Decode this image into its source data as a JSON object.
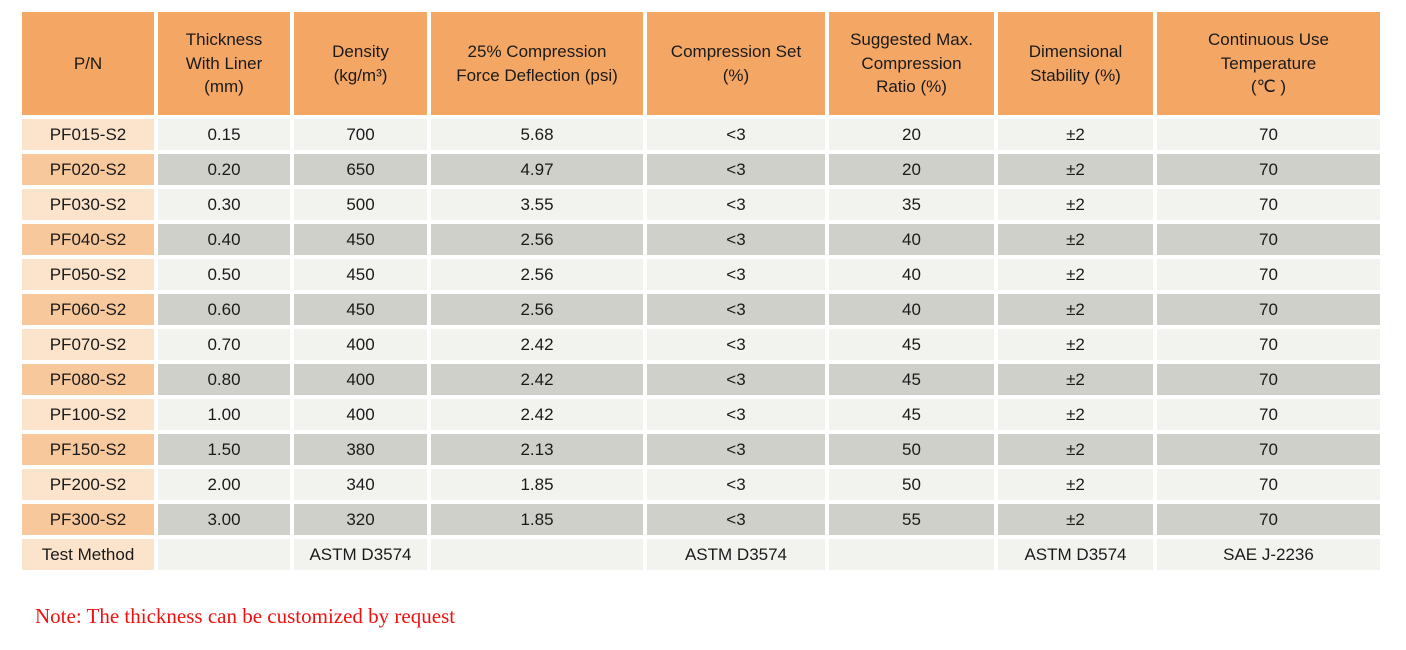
{
  "colors": {
    "header_bg": "#F4A765",
    "pn_odd_bg": "#FCE3CB",
    "pn_even_bg": "#F8C89D",
    "cell_odd_bg": "#F2F2EE",
    "cell_even_bg": "#D0D0CA",
    "text": "#1A1A1A",
    "note": "#F01010"
  },
  "table": {
    "columns": [
      "P/N",
      "Thickness\nWith Liner\n(mm)",
      "Density\n(kg/m³)",
      "25% Compression\nForce Deflection (psi)",
      "Compression Set\n(%)",
      "Suggested Max.\nCompression\nRatio (%)",
      "Dimensional\nStability (%)",
      "Continuous Use\nTemperature\n(℃ )"
    ],
    "rows": [
      [
        "PF015-S2",
        "0.15",
        "700",
        "5.68",
        "<3",
        "20",
        "±2",
        "70"
      ],
      [
        "PF020-S2",
        "0.20",
        "650",
        "4.97",
        "<3",
        "20",
        "±2",
        "70"
      ],
      [
        "PF030-S2",
        "0.30",
        "500",
        "3.55",
        "<3",
        "35",
        "±2",
        "70"
      ],
      [
        "PF040-S2",
        "0.40",
        "450",
        "2.56",
        "<3",
        "40",
        "±2",
        "70"
      ],
      [
        "PF050-S2",
        "0.50",
        "450",
        "2.56",
        "<3",
        "40",
        "±2",
        "70"
      ],
      [
        "PF060-S2",
        "0.60",
        "450",
        "2.56",
        "<3",
        "40",
        "±2",
        "70"
      ],
      [
        "PF070-S2",
        "0.70",
        "400",
        "2.42",
        "<3",
        "45",
        "±2",
        "70"
      ],
      [
        "PF080-S2",
        "0.80",
        "400",
        "2.42",
        "<3",
        "45",
        "±2",
        "70"
      ],
      [
        "PF100-S2",
        "1.00",
        "400",
        "2.42",
        "<3",
        "45",
        "±2",
        "70"
      ],
      [
        "PF150-S2",
        "1.50",
        "380",
        "2.13",
        "<3",
        "50",
        "±2",
        "70"
      ],
      [
        "PF200-S2",
        "2.00",
        "340",
        "1.85",
        "<3",
        "50",
        "±2",
        "70"
      ],
      [
        "PF300-S2",
        "3.00",
        "320",
        "1.85",
        "<3",
        "55",
        "±2",
        "70"
      ],
      [
        "Test Method",
        "",
        "ASTM D3574",
        "",
        "ASTM D3574",
        "",
        "ASTM D3574",
        "SAE J-2236"
      ]
    ]
  },
  "note": {
    "text": "Note: The thickness can be customized by request"
  }
}
